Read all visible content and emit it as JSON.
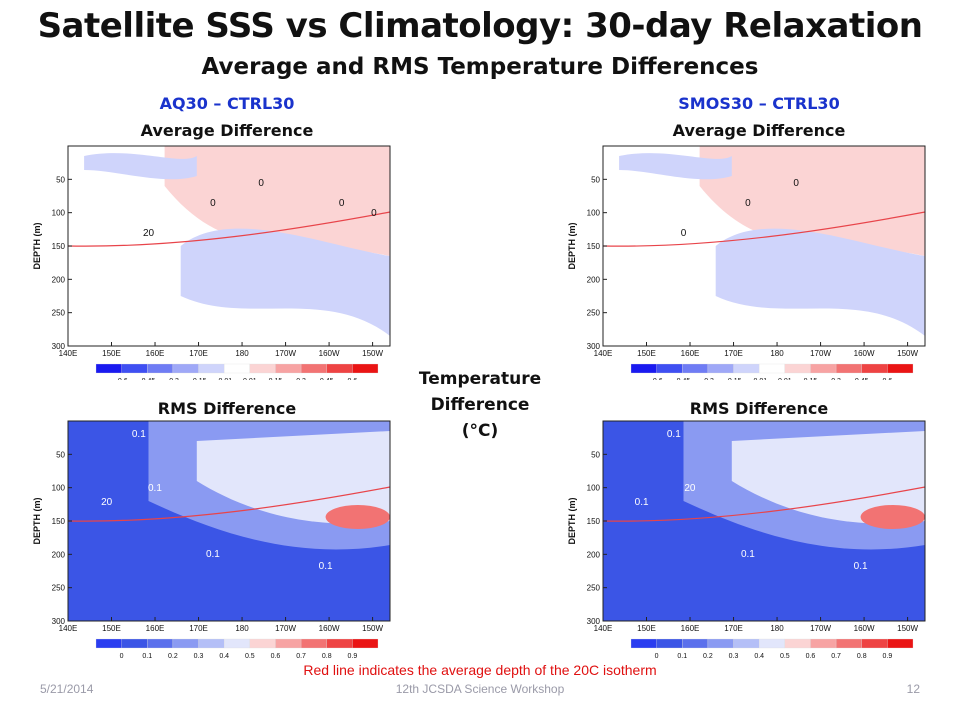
{
  "title": "Satellite SSS vs Climatology:  30-day Relaxation",
  "subtitle": "Average and RMS Temperature Differences",
  "left_column": {
    "heading": "AQ30 – CTRL30",
    "avg_label": "Average Difference",
    "rms_label": "RMS Difference"
  },
  "right_column": {
    "heading": "SMOS30 – CTRL30",
    "avg_label": "Average Difference",
    "rms_label": "RMS Difference"
  },
  "center_label": [
    "Temperature",
    "Difference",
    "(°C)"
  ],
  "note": "Red line indicates the average depth of the 20C isotherm",
  "footer": {
    "date": "5/21/2014",
    "event": "12th JCSDA Science Workshop",
    "page": "12"
  },
  "colors": {
    "heading_blue": "#1a33cc",
    "note_red": "#e01010",
    "isotherm_red": "#e8444a",
    "rms_background": "#3b55e6"
  },
  "chart_data": [
    {
      "type": "heatmap",
      "panel": "AQ30 - CTRL30 Average Difference",
      "ylabel": "DEPTH (m)",
      "x_ticks": [
        "140E",
        "150E",
        "160E",
        "170E",
        "180",
        "170W",
        "160W",
        "150W"
      ],
      "y_ticks": [
        "50",
        "100",
        "150",
        "200",
        "250",
        "300"
      ],
      "ylim": [
        0,
        300
      ],
      "contour_labels": [
        "20",
        "0",
        "0",
        "0",
        "0"
      ],
      "colorbar": {
        "labels": [
          "-0.6",
          "-0.45",
          "-0.3",
          "-0.15",
          "-0.01",
          "0.01",
          "0.15",
          "0.3",
          "0.45",
          "0.6"
        ]
      }
    },
    {
      "type": "heatmap",
      "panel": "SMOS30 - CTRL30 Average Difference",
      "ylabel": "DEPTH (m)",
      "x_ticks": [
        "140E",
        "150E",
        "160E",
        "170E",
        "180",
        "170W",
        "160W",
        "150W"
      ],
      "y_ticks": [
        "50",
        "100",
        "150",
        "200",
        "250",
        "300"
      ],
      "ylim": [
        0,
        300
      ],
      "contour_labels": [
        "0",
        "0",
        "0"
      ],
      "colorbar": {
        "labels": [
          "-0.6",
          "-0.45",
          "-0.3",
          "-0.15",
          "-0.01",
          "0.01",
          "0.15",
          "0.3",
          "0.45",
          "0.6"
        ]
      }
    },
    {
      "type": "heatmap",
      "panel": "AQ30 - CTRL30 RMS Difference",
      "ylabel": "DEPTH (m)",
      "x_ticks": [
        "140E",
        "150E",
        "160E",
        "170E",
        "180",
        "170W",
        "160W",
        "150W"
      ],
      "y_ticks": [
        "50",
        "100",
        "150",
        "200",
        "250",
        "300"
      ],
      "ylim": [
        0,
        300
      ],
      "contour_labels": [
        "0.1",
        "0.1",
        "20",
        "0.1",
        "0.1"
      ],
      "colorbar": {
        "labels": [
          "0",
          "0.1",
          "0.2",
          "0.3",
          "0.4",
          "0.5",
          "0.6",
          "0.7",
          "0.8",
          "0.9"
        ]
      }
    },
    {
      "type": "heatmap",
      "panel": "SMOS30 - CTRL30 RMS Difference",
      "ylabel": "DEPTH (m)",
      "x_ticks": [
        "140E",
        "150E",
        "160E",
        "170E",
        "180",
        "170W",
        "160W",
        "150W"
      ],
      "y_ticks": [
        "50",
        "100",
        "150",
        "200",
        "250",
        "300"
      ],
      "ylim": [
        0,
        300
      ],
      "contour_labels": [
        "0.1",
        "20",
        "0.1",
        "0.1",
        "0.1"
      ],
      "colorbar": {
        "labels": [
          "0",
          "0.1",
          "0.2",
          "0.3",
          "0.4",
          "0.5",
          "0.6",
          "0.7",
          "0.8",
          "0.9"
        ]
      }
    }
  ]
}
